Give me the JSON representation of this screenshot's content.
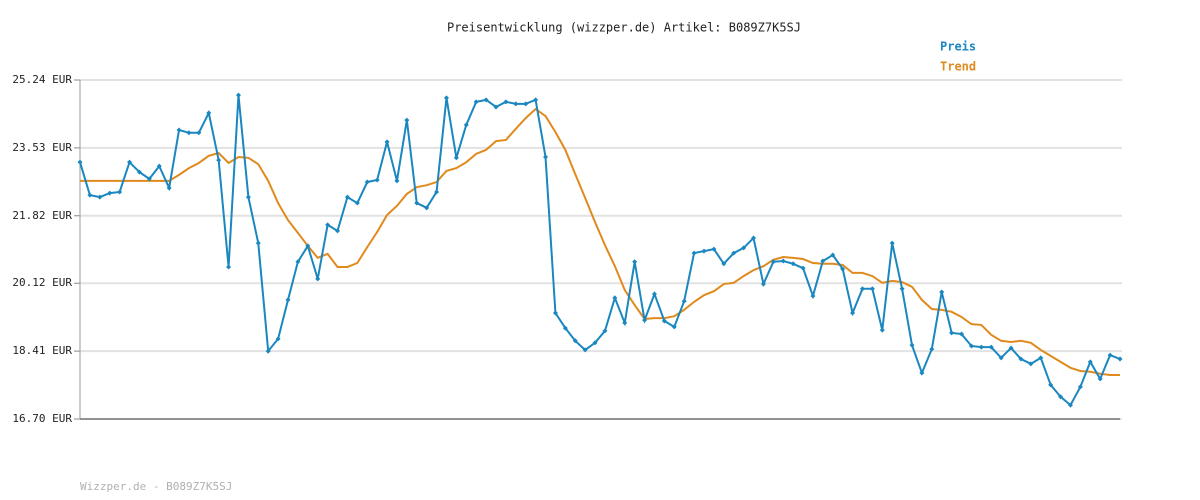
{
  "chart_data": {
    "type": "line",
    "title": "Preisentwicklung (wizzper.de) Artikel: B089Z7K5SJ",
    "footer": "Wizzper.de - B089Z7K5SJ",
    "legend": "top-right",
    "grid": true,
    "ylim": [
      16.7,
      25.24
    ],
    "yticks": [
      {
        "value": 16.7,
        "label": "16.70 EUR"
      },
      {
        "value": 18.41,
        "label": "18.41 EUR"
      },
      {
        "value": 20.12,
        "label": "20.12 EUR"
      },
      {
        "value": 21.82,
        "label": "21.82 EUR"
      },
      {
        "value": 23.53,
        "label": "23.53 EUR"
      },
      {
        "value": 25.24,
        "label": "25.24 EUR"
      }
    ],
    "series": [
      {
        "name": "Preis",
        "color": "#1a87c0",
        "markers": true,
        "values": [
          23.17,
          22.34,
          22.29,
          22.39,
          22.42,
          23.17,
          22.92,
          22.75,
          23.07,
          22.52,
          23.98,
          23.91,
          23.91,
          24.41,
          23.22,
          20.53,
          24.86,
          22.29,
          21.13,
          18.41,
          18.72,
          19.7,
          20.66,
          21.06,
          20.23,
          21.59,
          21.44,
          22.29,
          22.14,
          22.67,
          22.72,
          23.68,
          22.7,
          24.23,
          22.14,
          22.02,
          22.42,
          24.79,
          23.28,
          24.11,
          24.69,
          24.74,
          24.56,
          24.69,
          24.64,
          24.64,
          24.74,
          23.3,
          19.37,
          18.99,
          18.67,
          18.44,
          18.62,
          18.92,
          19.75,
          19.12,
          20.66,
          19.19,
          19.85,
          19.17,
          19.02,
          19.67,
          20.88,
          20.93,
          20.98,
          20.61,
          20.88,
          21.01,
          21.26,
          20.1,
          20.66,
          20.68,
          20.61,
          20.5,
          19.8,
          20.68,
          20.83,
          20.48,
          19.37,
          19.98,
          19.98,
          18.94,
          21.13,
          19.98,
          18.56,
          17.86,
          18.46,
          19.9,
          18.87,
          18.84,
          18.54,
          18.51,
          18.51,
          18.24,
          18.49,
          18.21,
          18.09,
          18.24,
          17.56,
          17.26,
          17.05,
          17.51,
          18.14,
          17.71,
          18.31,
          18.21
        ]
      },
      {
        "name": "Trend",
        "color": "#e08a1e",
        "markers": false,
        "values": [
          22.7,
          22.7,
          22.7,
          22.7,
          22.7,
          22.7,
          22.7,
          22.7,
          22.7,
          22.7,
          22.85,
          23.02,
          23.15,
          23.33,
          23.4,
          23.15,
          23.3,
          23.28,
          23.12,
          22.7,
          22.14,
          21.71,
          21.39,
          21.06,
          20.76,
          20.86,
          20.53,
          20.53,
          20.63,
          21.03,
          21.41,
          21.84,
          22.07,
          22.37,
          22.54,
          22.59,
          22.67,
          22.95,
          23.02,
          23.17,
          23.38,
          23.48,
          23.7,
          23.73,
          24.01,
          24.28,
          24.51,
          24.33,
          23.93,
          23.48,
          22.87,
          22.27,
          21.66,
          21.08,
          20.55,
          19.95,
          19.57,
          19.22,
          19.24,
          19.24,
          19.29,
          19.45,
          19.65,
          19.82,
          19.92,
          20.1,
          20.13,
          20.3,
          20.45,
          20.55,
          20.71,
          20.78,
          20.76,
          20.73,
          20.63,
          20.61,
          20.61,
          20.58,
          20.38,
          20.38,
          20.3,
          20.13,
          20.18,
          20.15,
          20.03,
          19.7,
          19.47,
          19.45,
          19.4,
          19.27,
          19.09,
          19.07,
          18.82,
          18.67,
          18.64,
          18.67,
          18.62,
          18.44,
          18.29,
          18.14,
          17.99,
          17.91,
          17.89,
          17.84,
          17.81,
          17.81
        ]
      }
    ]
  }
}
